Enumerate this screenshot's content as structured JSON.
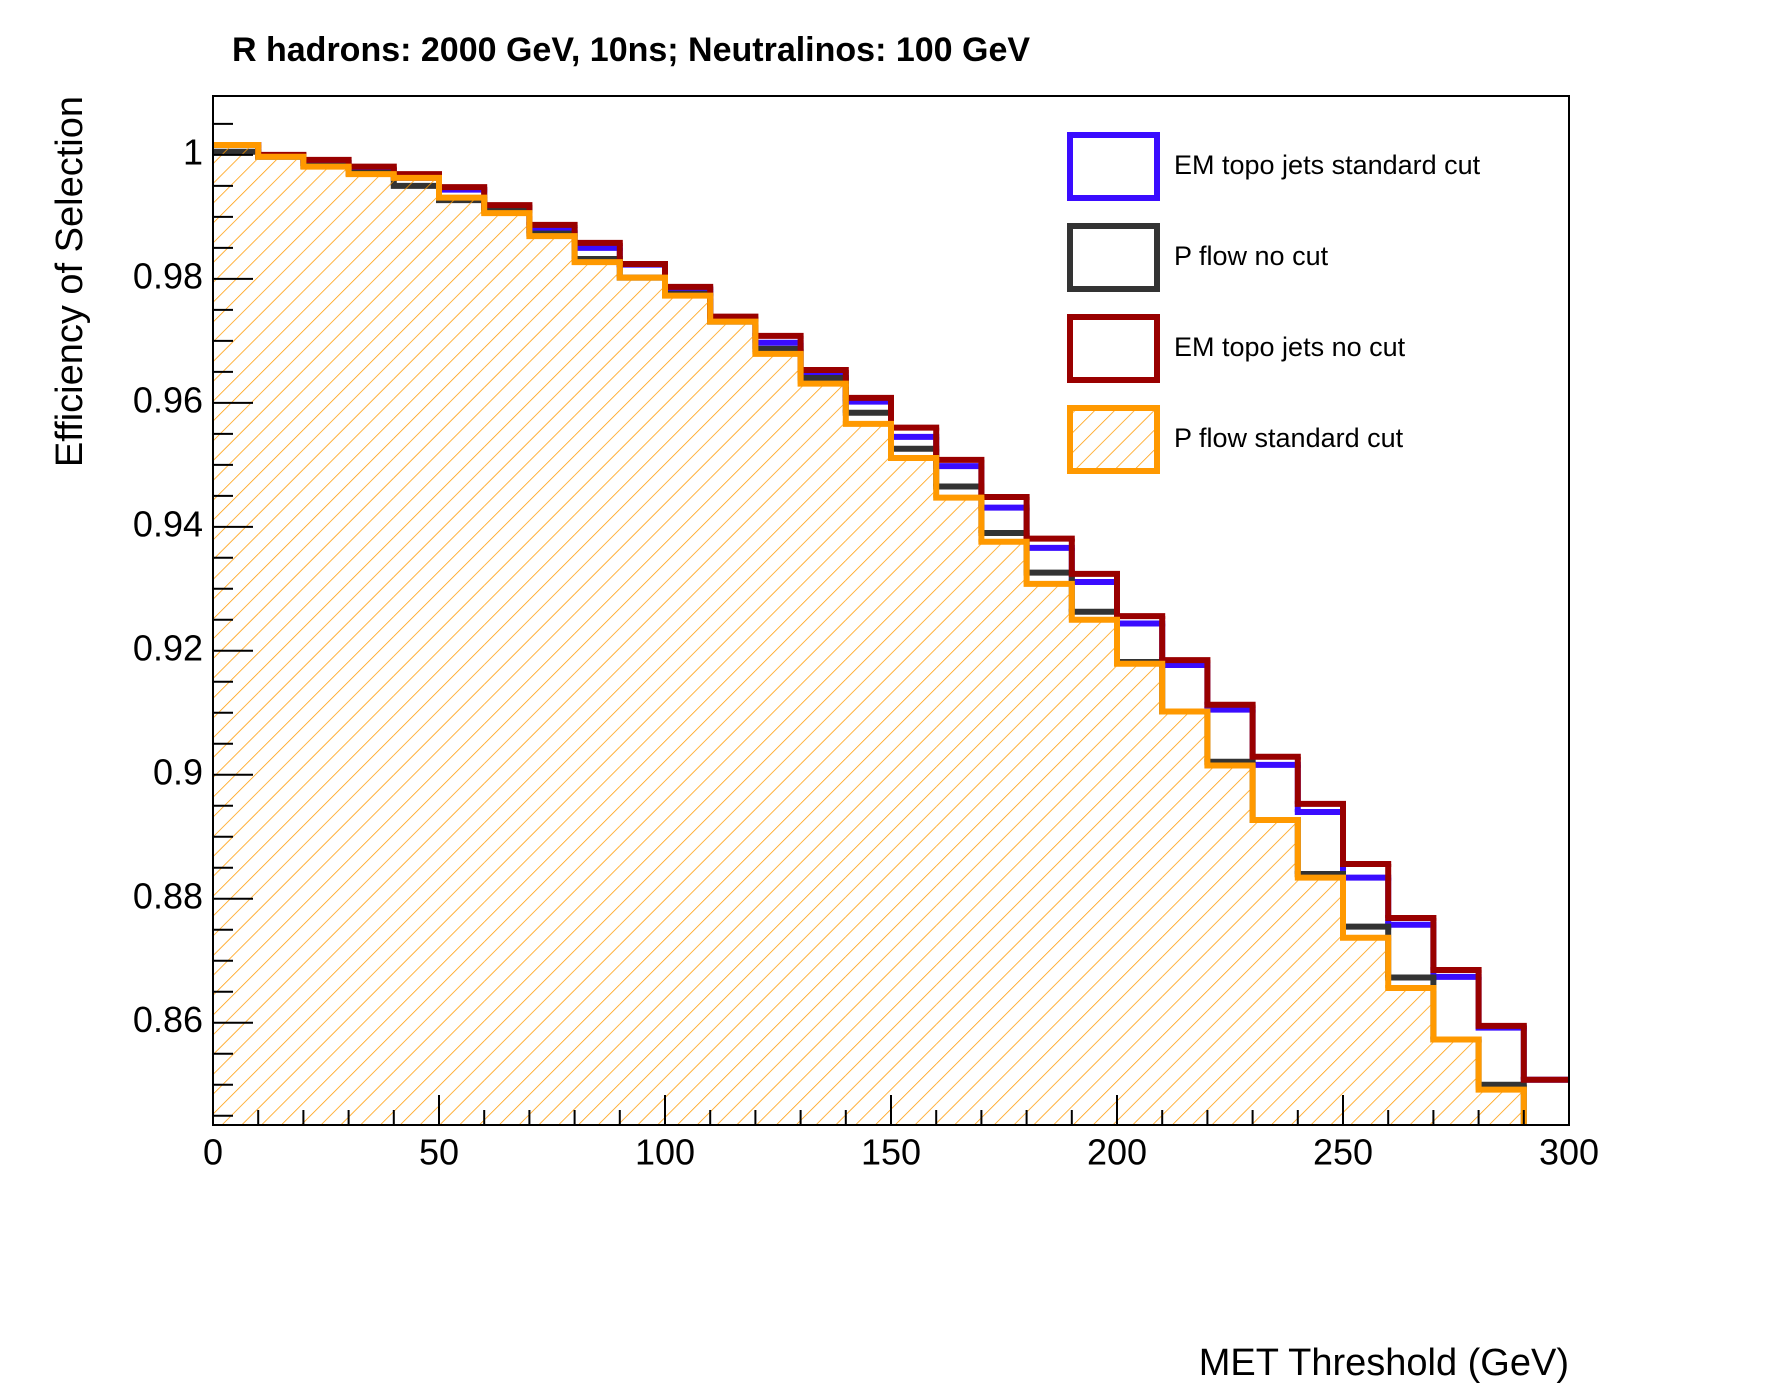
{
  "chart_data": {
    "type": "histogram",
    "title": "R hadrons: 2000 GeV, 10ns; Neutralinos: 100 GeV",
    "xlabel": "MET Threshold (GeV)",
    "ylabel": "Efficiency of Selection",
    "bins": [
      0,
      10,
      20,
      30,
      40,
      50,
      60,
      70,
      80,
      90,
      100,
      110,
      120,
      130,
      140,
      150,
      160,
      170,
      180,
      190,
      200,
      210,
      220,
      230,
      240,
      250,
      260,
      270,
      280,
      290,
      300
    ],
    "xlim": [
      0,
      300
    ],
    "xticks": [
      0,
      50,
      100,
      150,
      200,
      250,
      300
    ],
    "ylim": [
      0.8435,
      1.0095
    ],
    "yticks": [
      0.86,
      0.88,
      0.9,
      0.92,
      0.94,
      0.96,
      0.98,
      1
    ],
    "legend": "top right",
    "series": [
      {
        "name": "EM topo jets standard cut",
        "color": "#3a0cff",
        "fill": false,
        "values": [
          1.0016,
          0.9998,
          0.9987,
          0.9974,
          0.9963,
          0.9944,
          0.9915,
          0.9879,
          0.985,
          0.9823,
          0.9784,
          0.9732,
          0.9697,
          0.9644,
          0.9602,
          0.9545,
          0.9498,
          0.9431,
          0.9366,
          0.9311,
          0.9244,
          0.9177,
          0.9105,
          0.9016,
          0.894,
          0.8834,
          0.8758,
          0.8674,
          0.8592,
          0.8508
        ]
      },
      {
        "name": "P flow no cut",
        "color": "#333333",
        "fill": false,
        "values": [
          1.0005,
          0.9997,
          0.9982,
          0.9971,
          0.995,
          0.9927,
          0.991,
          0.9873,
          0.9832,
          0.9802,
          0.9776,
          0.9731,
          0.9687,
          0.964,
          0.9584,
          0.9526,
          0.9465,
          0.939,
          0.9326,
          0.9263,
          0.9182,
          0.9102,
          0.9021,
          0.8927,
          0.884,
          0.8755,
          0.8673,
          0.8573,
          0.85,
          0.843
        ]
      },
      {
        "name": "EM topo jets no cut",
        "color": "#990000",
        "fill": false,
        "values": [
          1.0016,
          1.0,
          0.9992,
          0.9981,
          0.9969,
          0.9948,
          0.9919,
          0.9887,
          0.9858,
          0.9824,
          0.9787,
          0.9739,
          0.9708,
          0.9653,
          0.9608,
          0.956,
          0.9508,
          0.9448,
          0.9381,
          0.9324,
          0.9256,
          0.9185,
          0.9113,
          0.9029,
          0.8953,
          0.8856,
          0.8769,
          0.8685,
          0.8595,
          0.8508
        ]
      },
      {
        "name": "P flow standard cut",
        "color": "#ff9900",
        "fill": true,
        "values": [
          1.0016,
          0.9997,
          0.9981,
          0.9969,
          0.9963,
          0.9931,
          0.9906,
          0.9869,
          0.9827,
          0.9802,
          0.9773,
          0.9731,
          0.9679,
          0.9631,
          0.9566,
          0.9511,
          0.9447,
          0.9376,
          0.9308,
          0.925,
          0.9179,
          0.9102,
          0.9015,
          0.8927,
          0.8834,
          0.8737,
          0.8656,
          0.8573,
          0.8492,
          0.843
        ]
      }
    ]
  }
}
